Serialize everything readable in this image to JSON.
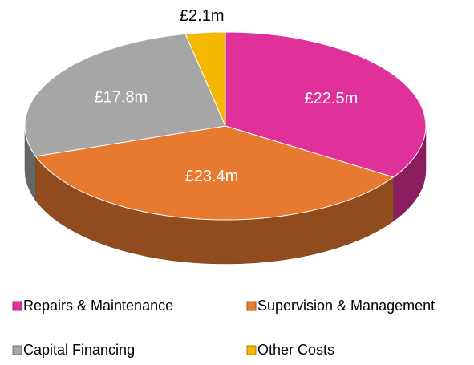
{
  "chart_data": {
    "type": "pie",
    "style": "3d",
    "categories": [
      "Repairs & Maintenance",
      "Supervision & Management",
      "Capital Financing",
      "Other Costs"
    ],
    "values": [
      22.5,
      23.4,
      17.8,
      2.1
    ],
    "value_labels": [
      "£22.5m",
      "£23.4m",
      "£17.8m",
      "£2.1m"
    ],
    "colors": [
      "#e0309a",
      "#e87a30",
      "#a6a6a6",
      "#f5b800"
    ],
    "legend": "bottom"
  }
}
